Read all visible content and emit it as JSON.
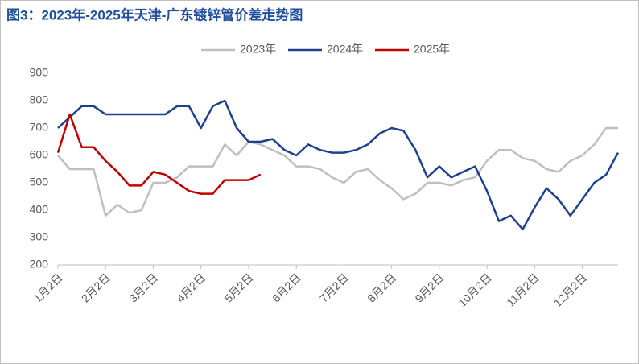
{
  "chart_data": {
    "type": "line",
    "title": "图3：2023年-2025年天津-广东镀锌管价差走势图",
    "categories": [
      "1月2日",
      null,
      null,
      null,
      "2月2日",
      null,
      null,
      null,
      "3月2日",
      null,
      null,
      null,
      "4月2日",
      null,
      null,
      null,
      "5月2日",
      null,
      null,
      null,
      "6月2日",
      null,
      null,
      null,
      "7月2日",
      null,
      null,
      null,
      "8月2日",
      null,
      null,
      null,
      "9月2日",
      null,
      null,
      null,
      "10月2日",
      null,
      null,
      null,
      "11月2日",
      null,
      null,
      null,
      "12月2日",
      null,
      null,
      null
    ],
    "series": [
      {
        "name": "2023年",
        "color": "#bfbfbf",
        "values": [
          600,
          550,
          550,
          550,
          380,
          420,
          390,
          400,
          500,
          500,
          520,
          560,
          560,
          560,
          640,
          600,
          650,
          640,
          620,
          600,
          560,
          560,
          550,
          520,
          500,
          540,
          550,
          510,
          480,
          440,
          460,
          500,
          500,
          490,
          510,
          520,
          580,
          620,
          620,
          590,
          580,
          550,
          540,
          580,
          600,
          640,
          700,
          700
        ]
      },
      {
        "name": "2024年",
        "color": "#1f3f8f",
        "values": [
          700,
          740,
          780,
          780,
          750,
          750,
          750,
          750,
          750,
          750,
          780,
          780,
          700,
          780,
          800,
          700,
          650,
          650,
          660,
          620,
          600,
          640,
          620,
          610,
          610,
          620,
          640,
          680,
          700,
          690,
          620,
          520,
          560,
          520,
          540,
          560,
          470,
          360,
          380,
          330,
          410,
          480,
          440,
          380,
          440,
          500,
          530,
          610
        ]
      },
      {
        "name": "2025年",
        "color": "#c00000",
        "values": [
          610,
          750,
          630,
          630,
          580,
          540,
          490,
          490,
          540,
          530,
          500,
          470,
          460,
          460,
          510,
          510,
          510,
          530,
          null,
          null,
          null,
          null,
          null,
          null,
          null,
          null,
          null,
          null,
          null,
          null,
          null,
          null,
          null,
          null,
          null,
          null,
          null,
          null,
          null,
          null,
          null,
          null,
          null,
          null,
          null,
          null,
          null,
          null
        ]
      }
    ],
    "ylim": [
      200,
      900
    ],
    "yticks": [
      200,
      300,
      400,
      500,
      600,
      700,
      800,
      900
    ],
    "grid": false,
    "legend": "top"
  }
}
